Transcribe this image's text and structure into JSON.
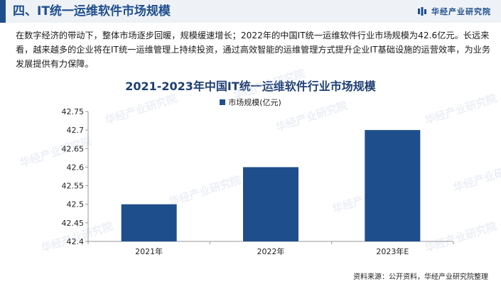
{
  "header": {
    "title": "四、IT统一运维软件市场规模",
    "brand": "华经产业研究院"
  },
  "intro_text": "在数字经济的带动下，整体市场逐步回暖，规模缓速增长；2022年的中国IT统一运维软件行业市场规模为42.6亿元。长远来看，越来越多的企业将在IT统一运维管理上持续投资，通过高效智能的运维管理方式提升企业IT基础设施的运营效率，为业务发展提供有力保障。",
  "watermark": "华经产业研究院",
  "source": "资料来源：公开资料，华经产业研究院整理",
  "colors": {
    "accent": "#1f4e8c",
    "bar": "#1f4e8c"
  },
  "chart_data": {
    "type": "bar",
    "title": "2021-2023年中国IT统一运维软件行业市场规模",
    "xlabel": "",
    "ylabel": "",
    "categories": [
      "2021年",
      "2022年",
      "2023年E"
    ],
    "series": [
      {
        "name": "市场规模(亿元)",
        "values": [
          42.5,
          42.6,
          42.7
        ]
      }
    ],
    "ylim": [
      42.4,
      42.75
    ],
    "yticks": [
      "42.4",
      "42.45",
      "42.5",
      "42.55",
      "42.6",
      "42.65",
      "42.7",
      "42.75"
    ],
    "grid": false,
    "legend": "top-center"
  }
}
